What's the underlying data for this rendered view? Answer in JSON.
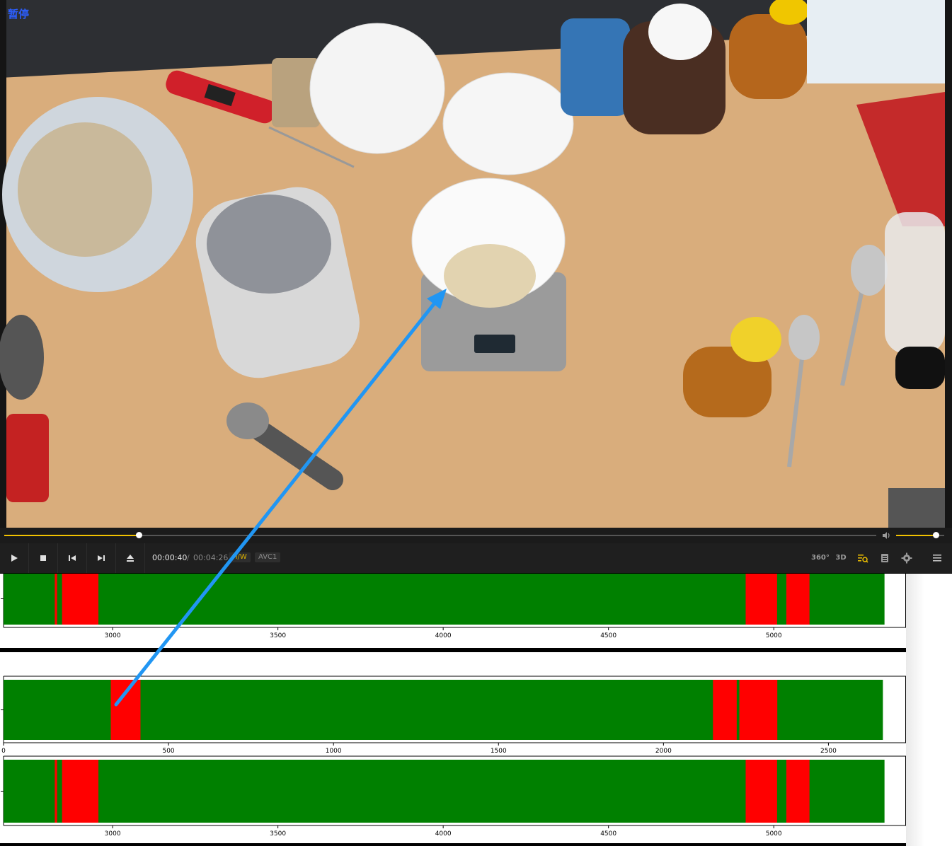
{
  "video": {
    "pause_label": "暂停",
    "progress_fraction": 0.154,
    "volume_fraction": 0.83
  },
  "controls": {
    "play_icon": "play-icon",
    "stop_icon": "stop-icon",
    "prev_icon": "skip-previous-icon",
    "next_icon": "skip-next-icon",
    "eject_icon": "eject-icon",
    "time_current": "00:00:40",
    "time_separator": "/",
    "time_duration": "00:04:26",
    "hw_badge": "H/W",
    "codec_badge": "AVC1",
    "vr_label": "360°",
    "threed_label": "3D",
    "playlist_icon": "playlist-search-icon",
    "chapter_icon": "chapter-icon",
    "settings_icon": "gear-icon",
    "menu_icon": "hamburger-menu-icon",
    "accent_color": "#f2c200"
  },
  "chart_data": [
    {
      "type": "bar",
      "orientation": "horizontal-timeline",
      "xlim": [
        2670,
        5400
      ],
      "x_ticks": [
        "3000",
        "3500",
        "4000",
        "4500",
        "5000"
      ],
      "background_color": "#008000",
      "segment_color": "#ff0000",
      "bar_start": 2670,
      "bar_end": 5335,
      "segments": [
        [
          2825,
          2832
        ],
        [
          2847,
          2957
        ],
        [
          4915,
          5010
        ],
        [
          5038,
          5108
        ]
      ]
    },
    {
      "type": "bar",
      "orientation": "horizontal-timeline",
      "xlim": [
        0,
        2735
      ],
      "x_ticks": [
        "0",
        "500",
        "1000",
        "1500",
        "2000",
        "2500"
      ],
      "background_color": "#008000",
      "segment_color": "#ff0000",
      "bar_start": 0,
      "bar_end": 2665,
      "segments": [
        [
          325,
          415
        ],
        [
          2150,
          2222
        ],
        [
          2230,
          2345
        ]
      ]
    },
    {
      "type": "bar",
      "orientation": "horizontal-timeline",
      "xlim": [
        2670,
        5400
      ],
      "x_ticks": [
        "3000",
        "3500",
        "4000",
        "4500",
        "5000"
      ],
      "background_color": "#008000",
      "segment_color": "#ff0000",
      "bar_start": 2670,
      "bar_end": 5335,
      "segments": [
        [
          2825,
          2832
        ],
        [
          2847,
          2957
        ],
        [
          4915,
          5010
        ],
        [
          5038,
          5108
        ]
      ]
    }
  ],
  "annotation": {
    "arrow_color": "#2196f3"
  }
}
